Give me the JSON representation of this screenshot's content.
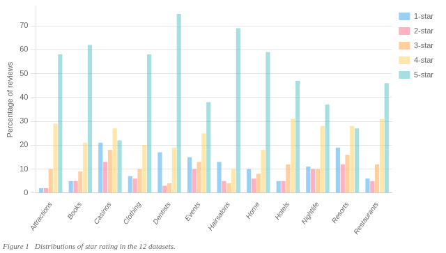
{
  "chart_data": {
    "type": "bar",
    "categories": [
      "Attractions",
      "Books",
      "Casinos",
      "Clothing",
      "Dentists",
      "Events",
      "Hairsalons",
      "Home",
      "Hotels",
      "Nightlife",
      "Resorts",
      "Restaurants"
    ],
    "series": [
      {
        "name": "1-star",
        "values": [
          2,
          5,
          21,
          7,
          17,
          15,
          13,
          10,
          5,
          11,
          19,
          6
        ]
      },
      {
        "name": "2-star",
        "values": [
          2,
          5,
          13,
          6,
          3,
          10,
          5,
          6,
          5,
          10,
          12,
          5
        ]
      },
      {
        "name": "3-star",
        "values": [
          10,
          9,
          18,
          10,
          4,
          13,
          4,
          8,
          12,
          10,
          16,
          12
        ]
      },
      {
        "name": "4-star",
        "values": [
          29,
          21,
          27,
          20,
          19,
          25,
          10,
          18,
          31,
          28,
          28,
          31
        ]
      },
      {
        "name": "5-star",
        "values": [
          58,
          62,
          22,
          58,
          75,
          38,
          69,
          59,
          47,
          37,
          27,
          46
        ]
      }
    ],
    "ylabel": "Percentage of reviews",
    "caption": "Figure 1   Distributions of star rating in the 12 datasets.",
    "ylim": [
      0,
      78
    ],
    "yticks": [
      0,
      10,
      20,
      30,
      40,
      50,
      60,
      70
    ],
    "grid": true,
    "legend": "upper right"
  }
}
